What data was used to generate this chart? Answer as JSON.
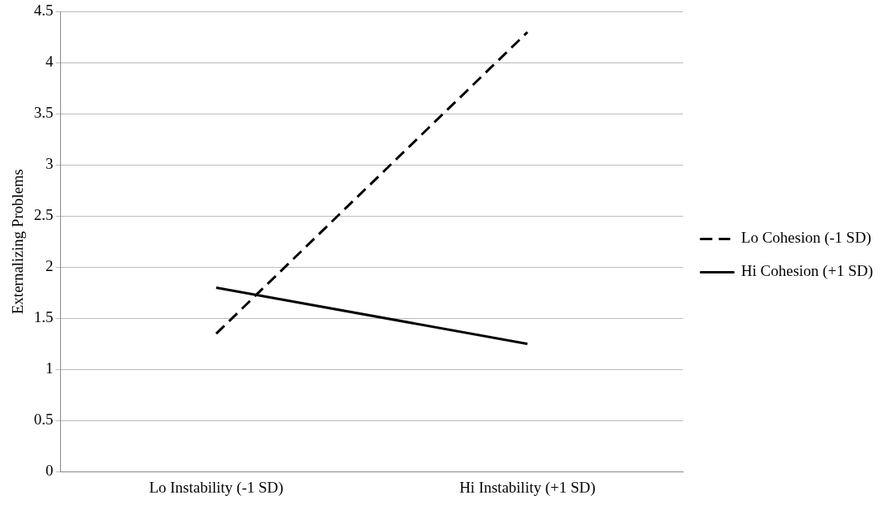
{
  "chart_data": {
    "type": "line",
    "ylabel": "Externalizing Problems",
    "categories": [
      "Lo Instability (-1 SD)",
      "Hi Instability (+1 SD)"
    ],
    "series": [
      {
        "name": "Lo Cohesion (-1 SD)",
        "color": "#000000",
        "values": [
          1.35,
          4.3
        ],
        "line_style": "dashed"
      },
      {
        "name": "Hi Cohesion (+1 SD)",
        "color": "#000000",
        "values": [
          1.8,
          1.25
        ],
        "line_style": "solid"
      }
    ],
    "ylim": [
      0,
      4.5
    ],
    "yticks": [
      0,
      0.5,
      1,
      1.5,
      2,
      2.5,
      3,
      3.5,
      4,
      4.5
    ],
    "grid": "y",
    "legend": "right",
    "marker": "none"
  }
}
